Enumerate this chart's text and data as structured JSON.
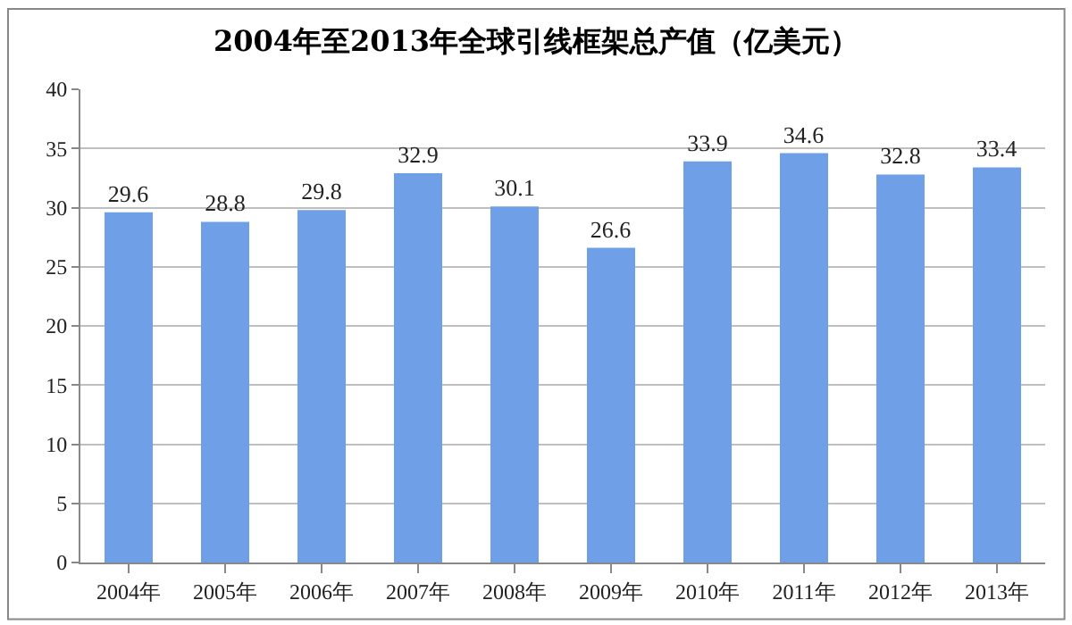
{
  "chart_data": {
    "type": "bar",
    "title": "2004年至2013年全球引线框架总产值（亿美元）",
    "categories": [
      "2004年",
      "2005年",
      "2006年",
      "2007年",
      "2008年",
      "2009年",
      "2010年",
      "2011年",
      "2012年",
      "2013年"
    ],
    "values": [
      29.6,
      28.8,
      29.8,
      32.9,
      30.1,
      26.6,
      33.9,
      34.6,
      32.8,
      33.4
    ],
    "color": "#6f9fe6",
    "ylim": [
      0,
      40
    ],
    "yticks": [
      0,
      5,
      10,
      15,
      20,
      25,
      30,
      35,
      40
    ],
    "grid": "y",
    "data_labels": true,
    "legend": false
  }
}
